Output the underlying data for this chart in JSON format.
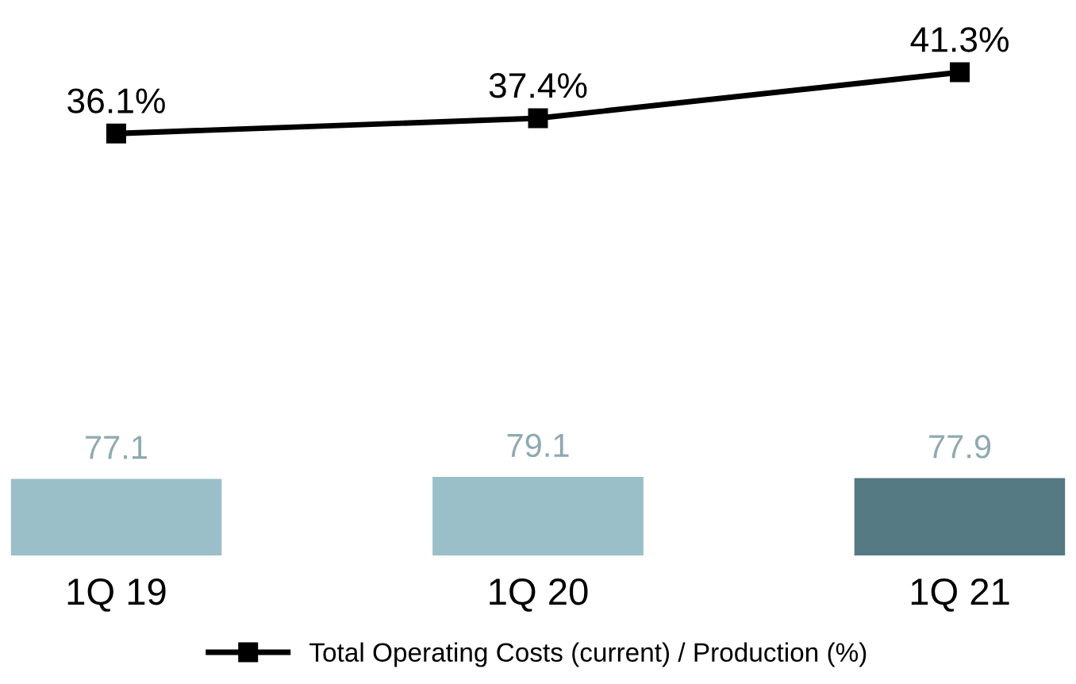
{
  "chart_data": [
    {
      "type": "line",
      "categories": [
        null,
        null,
        null
      ],
      "legend": "bottom",
      "marker": "square",
      "line_style": "solid",
      "series": [
        {
          "name": "Total Operating Costs (current) / Production (%)",
          "color": "#000000",
          "values": [
            36.1,
            37.4,
            41.3
          ],
          "value_labels": [
            "36.1%",
            "37.4%",
            "41.3%"
          ]
        }
      ]
    },
    {
      "type": "bar",
      "categories": [
        "1Q 19",
        "1Q 20",
        "1Q 21"
      ],
      "series": [
        {
          "colors": [
            "#9bbfc8",
            "#9bbfc8",
            "#557a83"
          ],
          "values": [
            77.1,
            79.1,
            77.9
          ],
          "value_labels": [
            "77.1",
            "79.1",
            "77.9"
          ]
        }
      ]
    }
  ]
}
